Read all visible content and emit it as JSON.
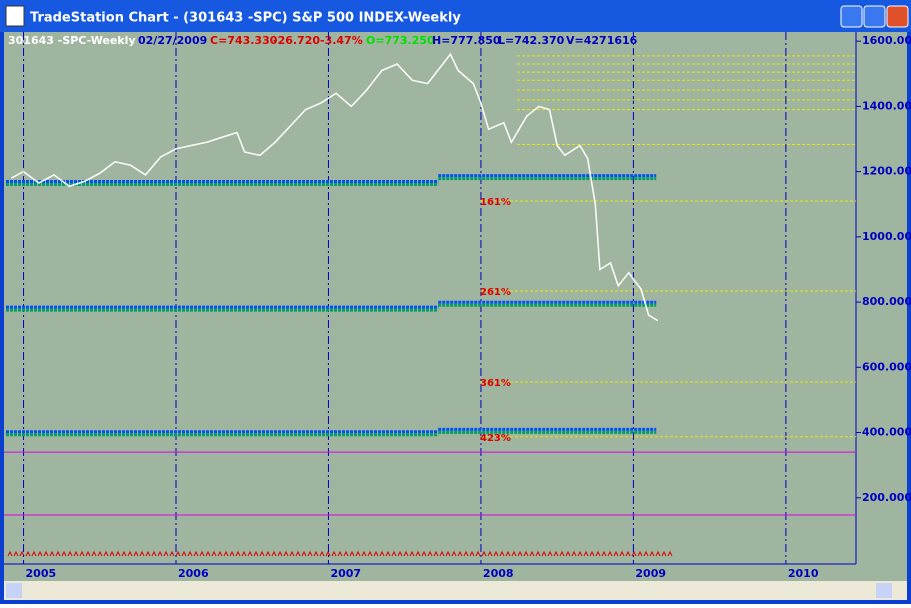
{
  "window": {
    "title": "TradeStation Chart - (301643 -SPC) S&P 500 INDEX-Weekly"
  },
  "header": {
    "symbol": "301643 -SPC-Weekly",
    "date": "02/27/2009",
    "close": "C=743.330",
    "change": "-26.720",
    "change_pct": "-3.47%",
    "open": "O=773.250",
    "high": "H=777.850",
    "low": "L=742.370",
    "volume": "V=4271616"
  },
  "chart_data": {
    "type": "line",
    "color": "#ffffff",
    "x": [
      2004.92,
      2005.0,
      2005.1,
      2005.2,
      2005.3,
      2005.4,
      2005.5,
      2005.6,
      2005.7,
      2005.8,
      2005.9,
      2006.0,
      2006.1,
      2006.2,
      2006.3,
      2006.4,
      2006.45,
      2006.55,
      2006.65,
      2006.75,
      2006.85,
      2006.95,
      2007.05,
      2007.15,
      2007.25,
      2007.35,
      2007.45,
      2007.55,
      2007.65,
      2007.75,
      2007.8,
      2007.85,
      2007.95,
      2008.0,
      2008.05,
      2008.15,
      2008.2,
      2008.3,
      2008.38,
      2008.45,
      2008.5,
      2008.55,
      2008.65,
      2008.7,
      2008.75,
      2008.78,
      2008.85,
      2008.9,
      2008.97,
      2009.0,
      2009.05,
      2009.1,
      2009.16
    ],
    "values": [
      1180,
      1200,
      1165,
      1190,
      1155,
      1170,
      1195,
      1230,
      1220,
      1190,
      1245,
      1270,
      1280,
      1290,
      1305,
      1320,
      1260,
      1250,
      1290,
      1340,
      1390,
      1410,
      1440,
      1400,
      1450,
      1510,
      1530,
      1480,
      1470,
      1530,
      1560,
      1510,
      1470,
      1410,
      1330,
      1350,
      1290,
      1370,
      1400,
      1390,
      1280,
      1250,
      1280,
      1240,
      1100,
      900,
      920,
      850,
      890,
      870,
      840,
      760,
      743.33
    ],
    "xlim": [
      2004.885,
      2010.46
    ],
    "xticks": [
      2005,
      2006,
      2007,
      2008,
      2009,
      2010
    ],
    "ylim": [
      0,
      1625
    ],
    "yticks": [
      {
        "value": 1600,
        "label": "1600.000"
      },
      {
        "value": 1400,
        "label": "1400.000"
      },
      {
        "value": 1200,
        "label": "1200.000"
      },
      {
        "value": 1000,
        "label": "1000.000"
      },
      {
        "value": 800,
        "label": "800.000"
      },
      {
        "value": 600,
        "label": "600.000"
      },
      {
        "value": 400,
        "label": "400.000"
      },
      {
        "value": 200,
        "label": "200.000"
      }
    ],
    "level_breaks": [
      2004.885,
      2007.72,
      2009.15
    ],
    "levels": [
      {
        "values": [
          1165,
          1183
        ]
      },
      {
        "values": [
          780,
          795
        ]
      },
      {
        "values": [
          398,
          405
        ]
      }
    ],
    "fib_lines": [
      1555,
      1530,
      1505,
      1480,
      1450,
      1420,
      1390,
      1283,
      {
        "value": 1110,
        "label": "161%"
      },
      {
        "value": 834,
        "label": "261%"
      },
      {
        "value": 555,
        "label": "361%"
      },
      {
        "value": 387,
        "label": "423%"
      }
    ],
    "hlines": [
      340,
      147
    ]
  }
}
